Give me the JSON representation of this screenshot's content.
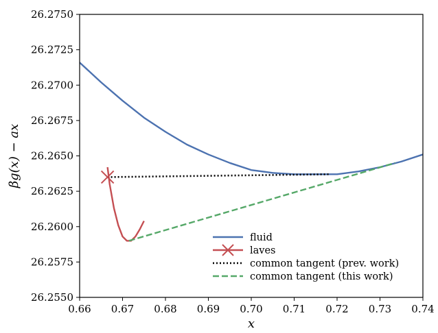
{
  "chart_data": {
    "type": "line",
    "xlabel": "x",
    "ylabel": "βg(x) − ax",
    "xlim": [
      0.66,
      0.74
    ],
    "ylim": [
      26.255,
      26.275
    ],
    "x_ticks": [
      "0.66",
      "0.67",
      "0.68",
      "0.69",
      "0.70",
      "0.71",
      "0.72",
      "0.73",
      "0.74"
    ],
    "y_ticks": [
      "26.2550",
      "26.2575",
      "26.2600",
      "26.2625",
      "26.2650",
      "26.2675",
      "26.2700",
      "26.2725",
      "26.2750"
    ],
    "grid": false,
    "legend_position": "lower-right",
    "series": [
      {
        "name": "fluid",
        "style": "solid",
        "color": "#4c72b0",
        "x": [
          0.66,
          0.665,
          0.67,
          0.675,
          0.68,
          0.685,
          0.69,
          0.695,
          0.7,
          0.705,
          0.71,
          0.715,
          0.72,
          0.725,
          0.73,
          0.735,
          0.74
        ],
        "y": [
          26.2716,
          26.2702,
          26.2689,
          26.2677,
          26.2667,
          26.2658,
          26.2651,
          26.2645,
          26.264,
          26.2638,
          26.2637,
          26.2637,
          26.2637,
          26.2639,
          26.2642,
          26.2646,
          26.2651
        ]
      },
      {
        "name": "laves",
        "style": "solid",
        "color": "#c44e52",
        "marker": "x",
        "x": [
          0.6665,
          0.667,
          0.668,
          0.669,
          0.67,
          0.671,
          0.672,
          0.673,
          0.674,
          0.675
        ],
        "y": [
          26.2642,
          26.263,
          26.2613,
          26.2601,
          26.2593,
          26.259,
          26.259,
          26.2593,
          26.2598,
          26.2604
        ]
      },
      {
        "name": "common tangent (prev. work)",
        "style": "dotted",
        "color": "#000000",
        "x": [
          0.6665,
          0.718
        ],
        "y": [
          26.2635,
          26.2637
        ]
      },
      {
        "name": "common tangent (this work)",
        "style": "dashed",
        "color": "#55a868",
        "x": [
          0.6715,
          0.7335
        ],
        "y": [
          26.259,
          26.2645
        ]
      }
    ],
    "markers": [
      {
        "series": "laves",
        "x": 0.6665,
        "y": 26.2635
      }
    ]
  }
}
